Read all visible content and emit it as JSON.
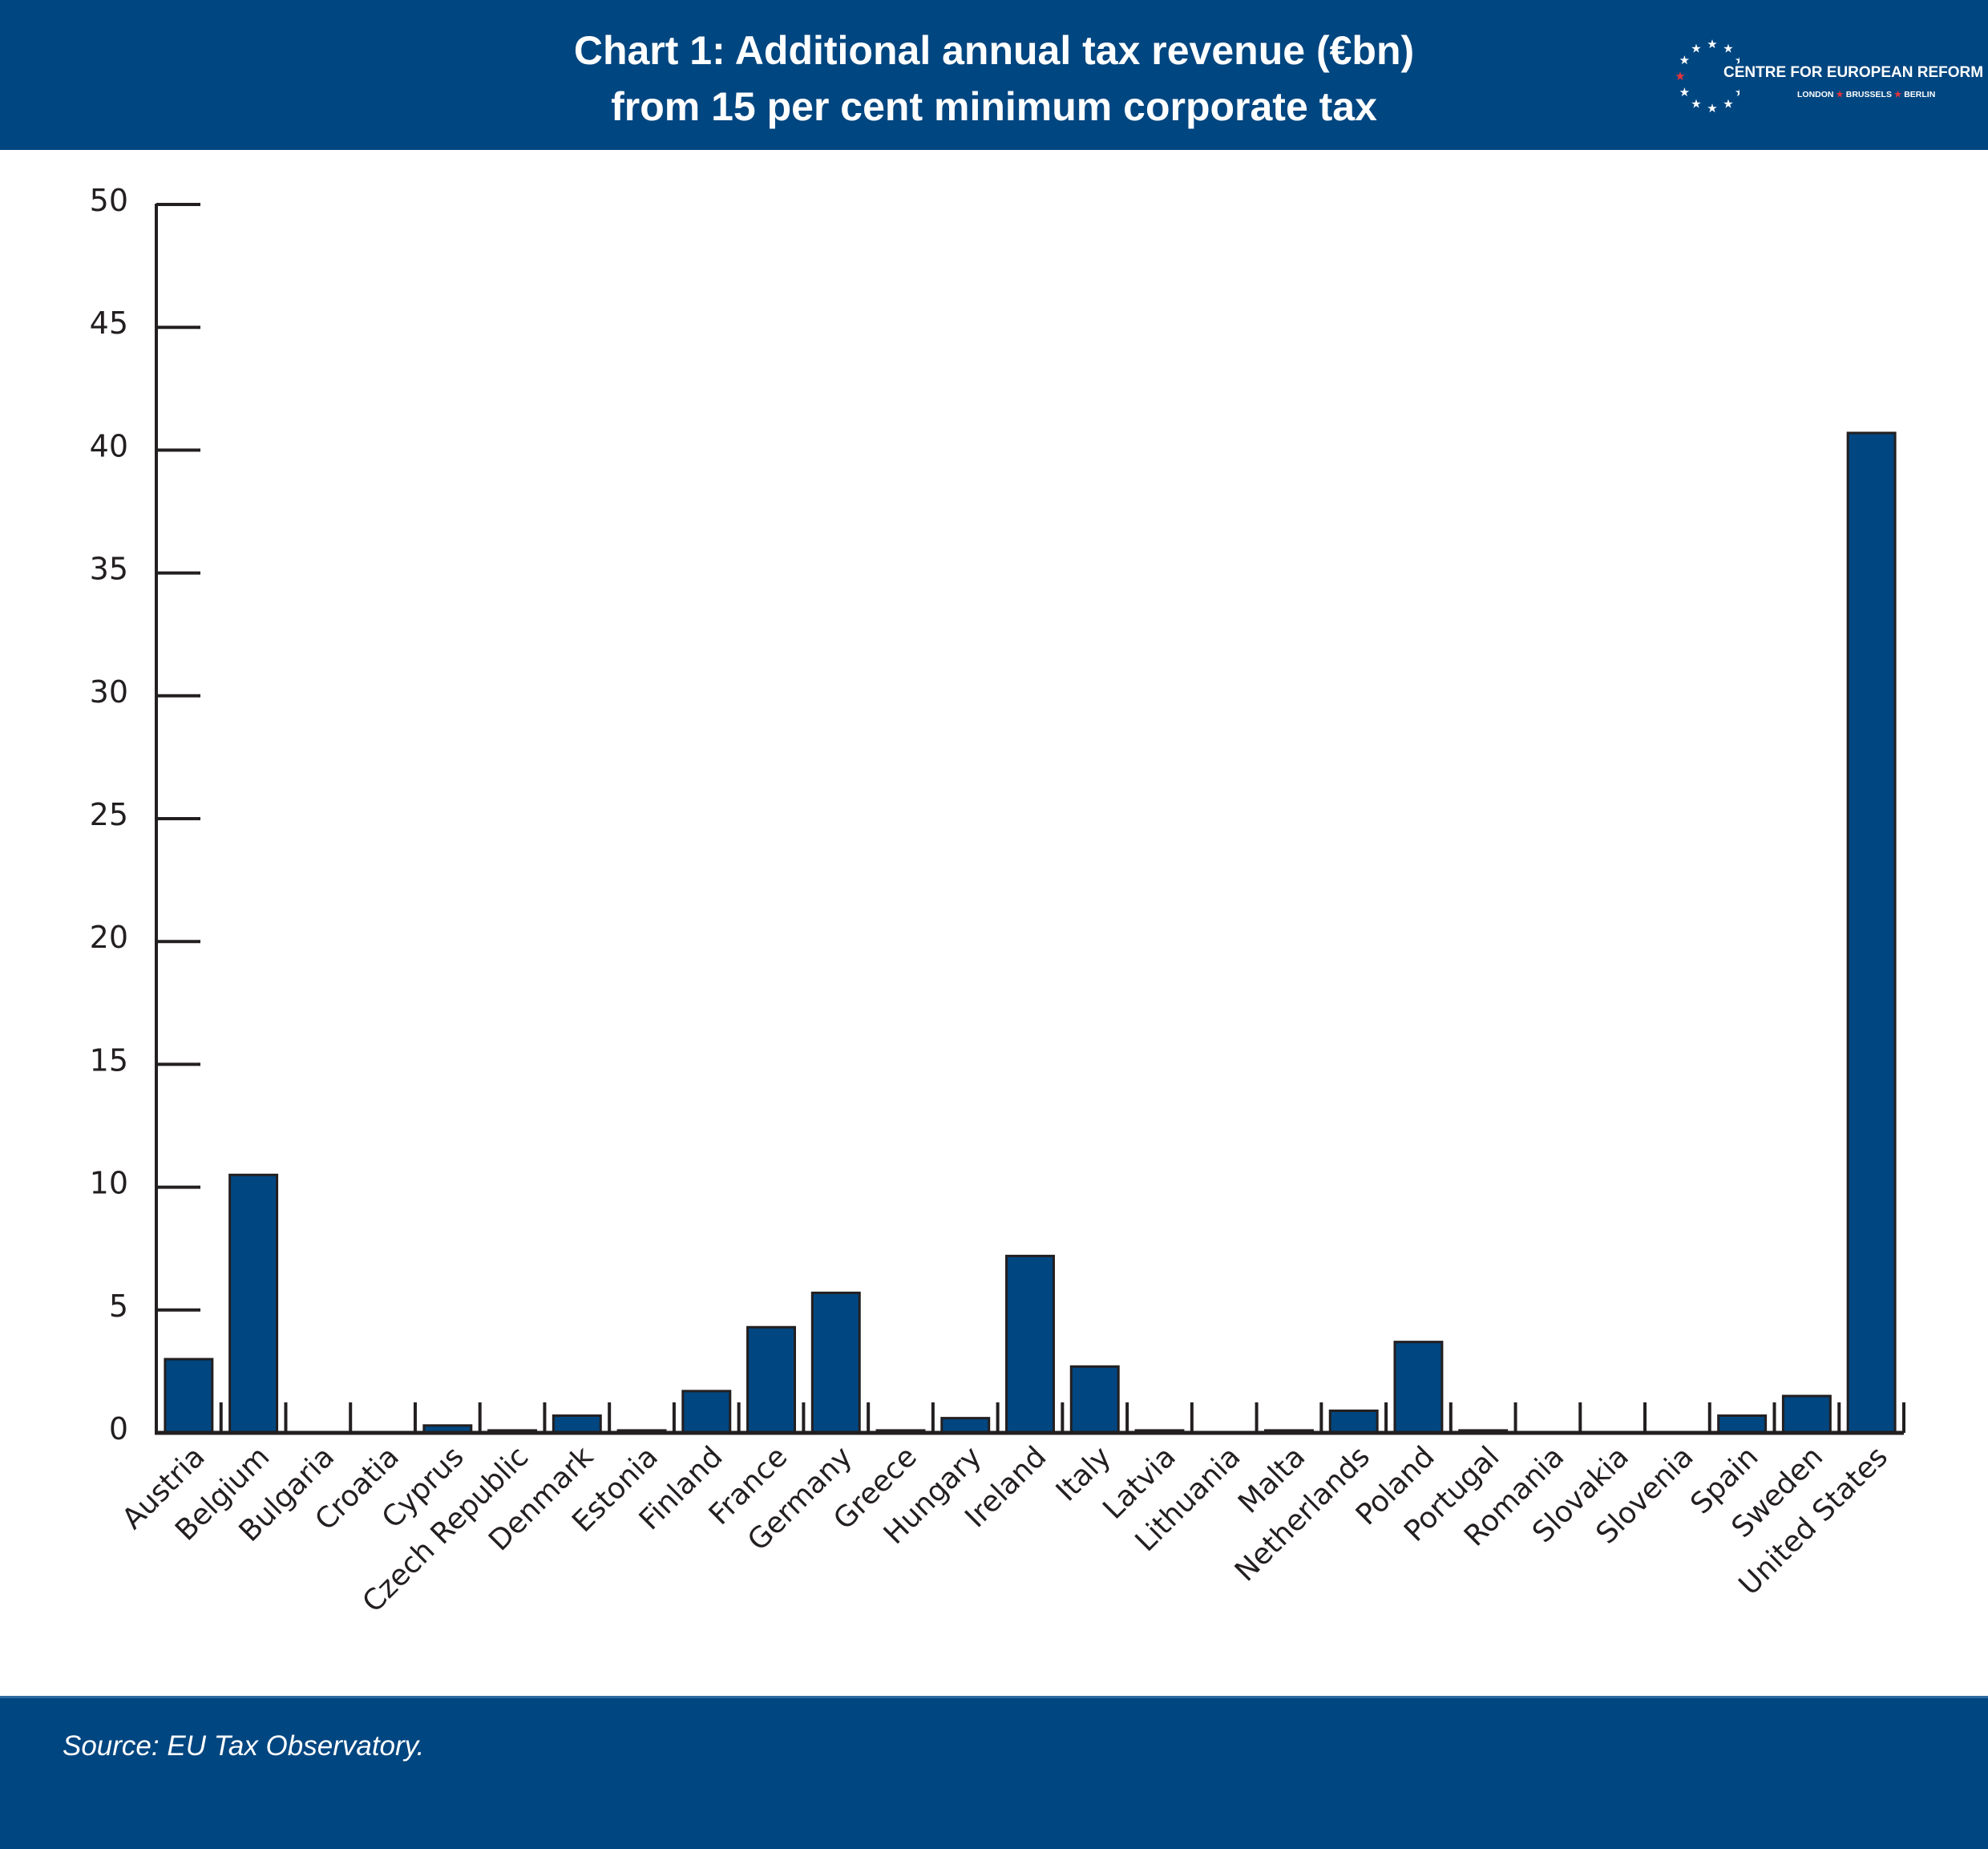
{
  "header": {
    "title_line1": "Chart 1: Additional annual tax revenue (€bn)",
    "title_line2": "from 15 per cent minimum corporate tax",
    "logo": {
      "name": "CENTRE FOR EUROPEAN REFORM",
      "cities": [
        "LONDON",
        "BRUSSELS",
        "BERLIN"
      ],
      "star_icon": "star-icon",
      "accent_color": "#e8323c"
    }
  },
  "footer": {
    "source": "Source: EU Tax Observatory."
  },
  "colors": {
    "brand": "#004680",
    "bar_fill": "#004680",
    "bar_stroke": "#231f20",
    "axis": "#231f20"
  },
  "chart_data": {
    "type": "bar",
    "title": "Chart 1: Additional annual tax revenue (€bn) from 15 per cent minimum corporate tax",
    "xlabel": "",
    "ylabel": "",
    "ylim": [
      0,
      50
    ],
    "yticks": [
      0,
      5,
      10,
      15,
      20,
      25,
      30,
      35,
      40,
      45,
      50
    ],
    "grid": false,
    "legend": "none",
    "categories": [
      "Austria",
      "Belgium",
      "Bulgaria",
      "Croatia",
      "Cyprus",
      "Czech Republic",
      "Denmark",
      "Estonia",
      "Finland",
      "France",
      "Germany",
      "Greece",
      "Hungary",
      "Ireland",
      "Italy",
      "Latvia",
      "Lithuania",
      "Malta",
      "Netherlands",
      "Poland",
      "Portugal",
      "Romania",
      "Slovakia",
      "Slovenia",
      "Spain",
      "Sweden",
      "United States"
    ],
    "values": [
      3.0,
      10.5,
      0.0,
      0.0,
      0.3,
      0.1,
      0.7,
      0.1,
      1.7,
      4.3,
      5.7,
      0.1,
      0.6,
      7.2,
      2.7,
      0.1,
      0.0,
      0.1,
      0.9,
      3.7,
      0.1,
      0.0,
      0.0,
      0.0,
      0.7,
      1.5,
      40.7
    ],
    "source": "Source: EU Tax Observatory."
  }
}
